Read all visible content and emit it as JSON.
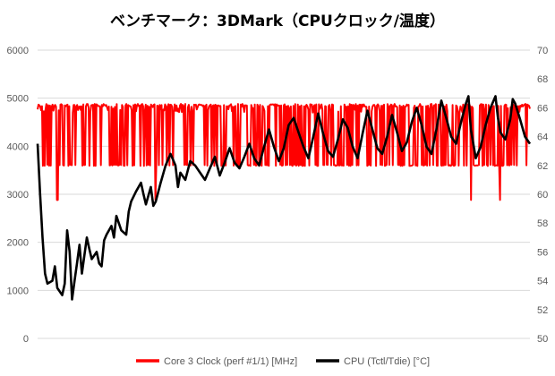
{
  "chart_data": {
    "type": "line",
    "title": "ベンチマーク：3DMark（CPUクロック/温度）",
    "grid": true,
    "legend_position": "bottom",
    "y_left": {
      "min": 0,
      "max": 6000,
      "ticks": [
        "0",
        "1000",
        "2000",
        "3000",
        "4000",
        "5000",
        "6000"
      ]
    },
    "y_right": {
      "min": 50,
      "max": 70,
      "ticks": [
        "50",
        "52",
        "54",
        "56",
        "58",
        "60",
        "62",
        "64",
        "66",
        "68",
        "70"
      ]
    },
    "series": [
      {
        "name": "Core 3 Clock (perf #1/1) [MHz]",
        "axis": "left",
        "color": "#ff0000",
        "high": 4880,
        "mid": 4700,
        "low": 3590,
        "dips": [
          {
            "t": 0.04,
            "v": 2880
          },
          {
            "t": 0.24,
            "v": 2880
          },
          {
            "t": 0.88,
            "v": 2880
          },
          {
            "t": 0.94,
            "v": 2880
          }
        ]
      },
      {
        "name": "CPU (Tctl/Tdie) [°C]",
        "axis": "right",
        "color": "#000000",
        "points": [
          [
            0.0,
            63.5
          ],
          [
            0.005,
            60.0
          ],
          [
            0.01,
            57.0
          ],
          [
            0.015,
            54.5
          ],
          [
            0.02,
            53.8
          ],
          [
            0.03,
            54.0
          ],
          [
            0.035,
            55.0
          ],
          [
            0.04,
            53.5
          ],
          [
            0.05,
            53.0
          ],
          [
            0.055,
            53.8
          ],
          [
            0.06,
            57.5
          ],
          [
            0.065,
            56.0
          ],
          [
            0.07,
            52.7
          ],
          [
            0.075,
            54.0
          ],
          [
            0.08,
            55.2
          ],
          [
            0.085,
            56.5
          ],
          [
            0.09,
            54.5
          ],
          [
            0.1,
            57.0
          ],
          [
            0.105,
            56.2
          ],
          [
            0.11,
            55.5
          ],
          [
            0.12,
            56.0
          ],
          [
            0.125,
            55.2
          ],
          [
            0.13,
            55.0
          ],
          [
            0.135,
            56.8
          ],
          [
            0.14,
            57.2
          ],
          [
            0.15,
            57.8
          ],
          [
            0.155,
            57.0
          ],
          [
            0.16,
            58.5
          ],
          [
            0.17,
            57.5
          ],
          [
            0.18,
            57.2
          ],
          [
            0.185,
            58.8
          ],
          [
            0.19,
            59.5
          ],
          [
            0.2,
            60.2
          ],
          [
            0.21,
            60.8
          ],
          [
            0.215,
            60.0
          ],
          [
            0.22,
            59.3
          ],
          [
            0.23,
            60.5
          ],
          [
            0.235,
            59.2
          ],
          [
            0.24,
            59.5
          ],
          [
            0.25,
            60.8
          ],
          [
            0.26,
            62.0
          ],
          [
            0.27,
            62.8
          ],
          [
            0.28,
            62.0
          ],
          [
            0.285,
            60.5
          ],
          [
            0.29,
            61.5
          ],
          [
            0.3,
            61.0
          ],
          [
            0.31,
            62.3
          ],
          [
            0.32,
            62.0
          ],
          [
            0.33,
            61.5
          ],
          [
            0.34,
            61.0
          ],
          [
            0.35,
            61.8
          ],
          [
            0.36,
            62.6
          ],
          [
            0.37,
            61.3
          ],
          [
            0.38,
            62.2
          ],
          [
            0.39,
            63.2
          ],
          [
            0.4,
            62.2
          ],
          [
            0.41,
            61.8
          ],
          [
            0.42,
            62.6
          ],
          [
            0.43,
            63.5
          ],
          [
            0.44,
            62.5
          ],
          [
            0.45,
            62.0
          ],
          [
            0.46,
            63.3
          ],
          [
            0.47,
            64.5
          ],
          [
            0.48,
            63.3
          ],
          [
            0.49,
            62.3
          ],
          [
            0.5,
            63.2
          ],
          [
            0.51,
            64.8
          ],
          [
            0.52,
            65.3
          ],
          [
            0.53,
            64.3
          ],
          [
            0.54,
            63.3
          ],
          [
            0.55,
            62.5
          ],
          [
            0.56,
            64.0
          ],
          [
            0.57,
            65.6
          ],
          [
            0.58,
            64.2
          ],
          [
            0.59,
            63.0
          ],
          [
            0.6,
            62.6
          ],
          [
            0.61,
            63.8
          ],
          [
            0.62,
            65.2
          ],
          [
            0.63,
            64.6
          ],
          [
            0.64,
            63.3
          ],
          [
            0.65,
            62.5
          ],
          [
            0.66,
            64.2
          ],
          [
            0.67,
            65.8
          ],
          [
            0.68,
            64.5
          ],
          [
            0.69,
            63.2
          ],
          [
            0.7,
            62.8
          ],
          [
            0.71,
            64.0
          ],
          [
            0.72,
            65.5
          ],
          [
            0.73,
            64.3
          ],
          [
            0.74,
            63.0
          ],
          [
            0.75,
            63.6
          ],
          [
            0.76,
            65.0
          ],
          [
            0.77,
            66.0
          ],
          [
            0.78,
            64.8
          ],
          [
            0.79,
            63.3
          ],
          [
            0.8,
            62.8
          ],
          [
            0.81,
            64.5
          ],
          [
            0.82,
            66.5
          ],
          [
            0.83,
            65.3
          ],
          [
            0.84,
            64.0
          ],
          [
            0.85,
            63.5
          ],
          [
            0.86,
            65.0
          ],
          [
            0.87,
            66.3
          ],
          [
            0.875,
            66.8
          ],
          [
            0.88,
            64.5
          ],
          [
            0.89,
            62.5
          ],
          [
            0.9,
            63.3
          ],
          [
            0.91,
            64.8
          ],
          [
            0.92,
            66.0
          ],
          [
            0.93,
            66.8
          ],
          [
            0.935,
            65.3
          ],
          [
            0.94,
            64.3
          ],
          [
            0.95,
            63.8
          ],
          [
            0.96,
            65.2
          ],
          [
            0.965,
            66.6
          ],
          [
            0.97,
            66.3
          ],
          [
            0.98,
            65.2
          ],
          [
            0.99,
            64.0
          ],
          [
            1.0,
            63.5
          ]
        ]
      }
    ]
  }
}
